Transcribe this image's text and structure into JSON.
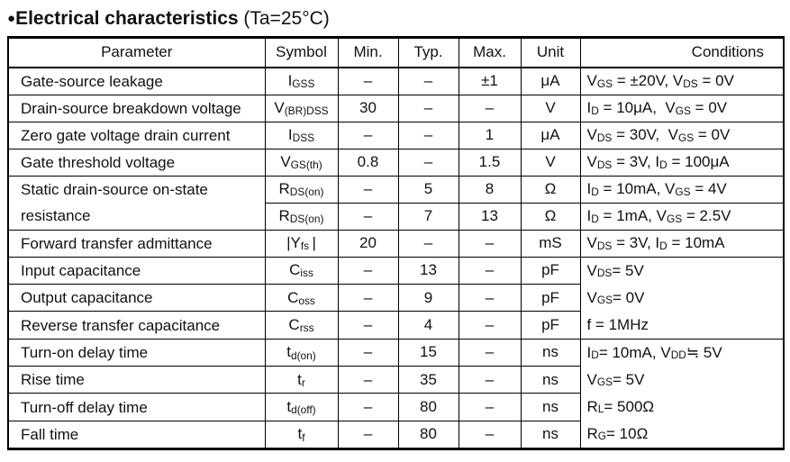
{
  "title": {
    "bullet": "●",
    "main": "Electrical characteristics",
    "suffix": " (Ta=25°C)"
  },
  "table": {
    "headers": [
      "Parameter",
      "Symbol",
      "Min.",
      "Typ.",
      "Max.",
      "Unit",
      "Conditions"
    ],
    "rows": [
      {
        "parameter": "Gate-source leakage",
        "symbol": "I_{GSS}",
        "min": "–",
        "typ": "–",
        "max": "±1",
        "unit": "μA",
        "conditions": "V_{GS} = ±20V, V_{DS} = 0V"
      },
      {
        "parameter": "Drain-source breakdown voltage",
        "symbol": "V_{(BR)DSS}",
        "min": "30",
        "typ": "–",
        "max": "–",
        "unit": "V",
        "conditions": "I_{D} = 10μA,  V_{GS} = 0V"
      },
      {
        "parameter": "Zero gate voltage drain current",
        "symbol": "I_{DSS}",
        "min": "–",
        "typ": "–",
        "max": "1",
        "unit": "μA",
        "conditions": "V_{DS} = 30V,  V_{GS} = 0V"
      },
      {
        "parameter": "Gate threshold voltage",
        "symbol": "V_{GS(th)}",
        "min": "0.8",
        "typ": "–",
        "max": "1.5",
        "unit": "V",
        "conditions": "V_{DS} = 3V, I_{D} = 100μA"
      },
      {
        "parameter": "Static drain-source on-state resistance",
        "symbol": "R_{DS(on)}",
        "min": "–",
        "typ": "5",
        "max": "8",
        "unit": "Ω",
        "conditions": "I_{D} = 10mA, V_{GS} = 4V"
      },
      {
        "parameter": "",
        "symbol": "R_{DS(on)}",
        "min": "–",
        "typ": "7",
        "max": "13",
        "unit": "Ω",
        "conditions": "I_{D} = 1mA, V_{GS} = 2.5V"
      },
      {
        "parameter": "Forward transfer admittance",
        "symbol": "|Y_{fs} |",
        "min": "20",
        "typ": "–",
        "max": "–",
        "unit": "mS",
        "conditions": "V_{DS} = 3V, I_{D} = 10mA"
      },
      {
        "parameter": "Input capacitance",
        "symbol": "C_{iss}",
        "min": "–",
        "typ": "13",
        "max": "–",
        "unit": "pF",
        "conditions": "V_{DS} = 5V"
      },
      {
        "parameter": "Output capacitance",
        "symbol": "C_{oss}",
        "min": "–",
        "typ": "9",
        "max": "–",
        "unit": "pF",
        "conditions": "V_{GS} = 0V"
      },
      {
        "parameter": "Reverse transfer capacitance",
        "symbol": "C_{rss}",
        "min": "–",
        "typ": "4",
        "max": "–",
        "unit": "pF",
        "conditions": "f = 1MHz"
      },
      {
        "parameter": "Turn-on delay time",
        "symbol": "t_{d(on)}",
        "min": "–",
        "typ": "15",
        "max": "–",
        "unit": "ns",
        "conditions": "I_{D} = 10mA, V_{DD} ≒ 5V"
      },
      {
        "parameter": "Rise time",
        "symbol": "t_{r}",
        "min": "–",
        "typ": "35",
        "max": "–",
        "unit": "ns",
        "conditions": "V_{GS} = 5V"
      },
      {
        "parameter": "Turn-off delay time",
        "symbol": "t_{d(off)}",
        "min": "–",
        "typ": "80",
        "max": "–",
        "unit": "ns",
        "conditions": "R_{L} = 500Ω"
      },
      {
        "parameter": "Fall time",
        "symbol": "t_{f}",
        "min": "–",
        "typ": "80",
        "max": "–",
        "unit": "ns",
        "conditions": "R_{G} = 10Ω"
      }
    ]
  }
}
